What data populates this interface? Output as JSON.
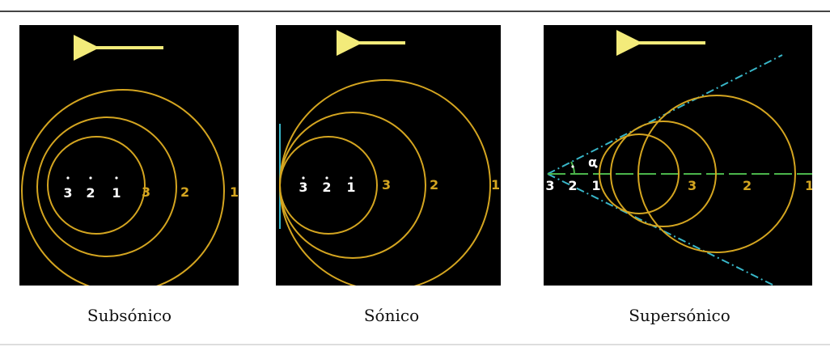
{
  "colors": {
    "circle": "#d4a520",
    "arrow": "#f3eb7a",
    "source": "#ffffff",
    "axis": "#4bb54b",
    "cone": "#38b6c8",
    "background": "#000000"
  },
  "panels": [
    {
      "id": "subsonico",
      "caption": "Subsónico",
      "sources": [
        "3",
        "2",
        "1"
      ],
      "waves": [
        "3",
        "2",
        "1"
      ]
    },
    {
      "id": "sonico",
      "caption": "Sónico",
      "sources": [
        "3",
        "2",
        "1"
      ],
      "waves": [
        "3",
        "2",
        "1"
      ]
    },
    {
      "id": "supersonico",
      "caption": "Supersónico",
      "sources": [
        "3",
        "2",
        "1"
      ],
      "waves": [
        "3",
        "2",
        "1"
      ],
      "angle_symbol": "α"
    }
  ]
}
